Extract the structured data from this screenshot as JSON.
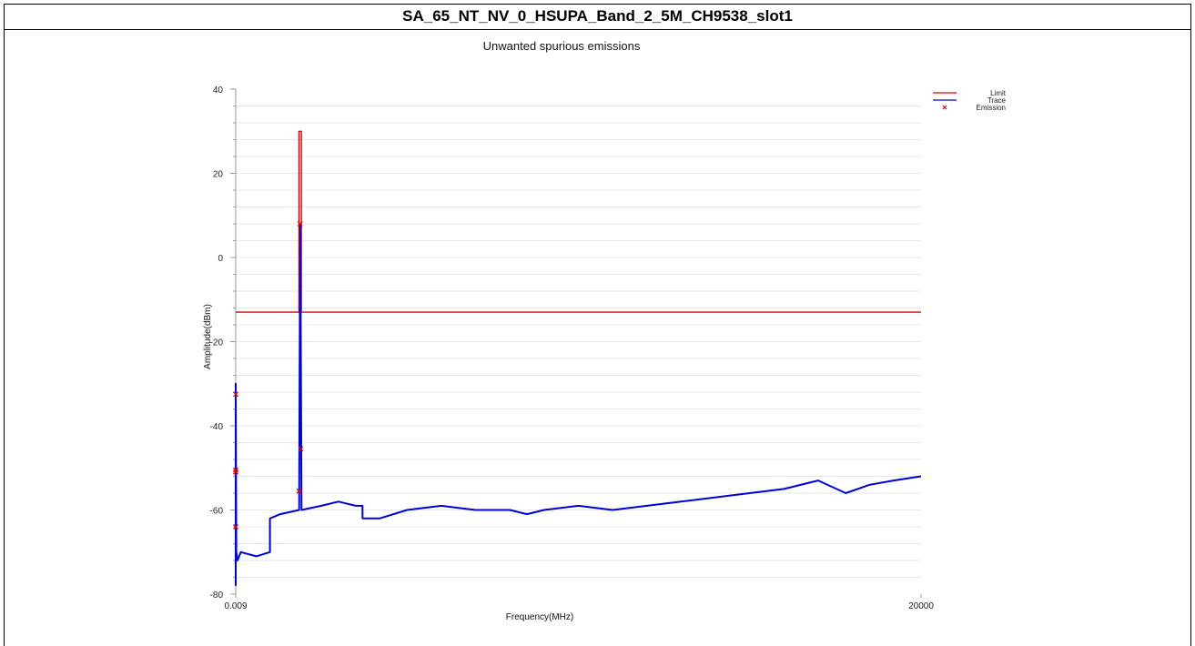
{
  "header": {
    "title": "SA_65_NT_NV_0_HSUPA_Band_2_5M_CH9538_slot1"
  },
  "chart_data": {
    "type": "line",
    "title": "Unwanted spurious emissions",
    "xlabel": "Frequency(MHz)",
    "ylabel": "Amplitude(dBm)",
    "xlim": [
      0.009,
      20000
    ],
    "ylim": [
      -80,
      40
    ],
    "x_tick_labels": [
      "0.009",
      "20000"
    ],
    "y_ticks": [
      40,
      20,
      0,
      -20,
      -40,
      -60,
      -80
    ],
    "x_axis_note": "piecewise frequency axis; values approximate",
    "grid": true,
    "legend_placement": "top-right",
    "colors": {
      "limit": "#e00000",
      "trace": "#0000dd",
      "emission": "#e00000"
    },
    "series": [
      {
        "name": "Limit",
        "kind": "line",
        "points": [
          [
            0.009,
            -13
          ],
          [
            1845,
            -13
          ],
          [
            1845,
            30
          ],
          [
            1915,
            30
          ],
          [
            1915,
            -13
          ],
          [
            20000,
            -13
          ]
        ]
      },
      {
        "name": "Trace",
        "kind": "line",
        "points": [
          [
            0.009,
            -78
          ],
          [
            0.009,
            -30
          ],
          [
            15,
            -70
          ],
          [
            50,
            -72
          ],
          [
            150,
            -70
          ],
          [
            600,
            -71
          ],
          [
            1000,
            -70
          ],
          [
            1000,
            -62
          ],
          [
            1300,
            -61
          ],
          [
            1850,
            -60
          ],
          [
            1880,
            8
          ],
          [
            1900,
            -20
          ],
          [
            1920,
            -60
          ],
          [
            2500,
            -59
          ],
          [
            3000,
            -58
          ],
          [
            3500,
            -59
          ],
          [
            3700,
            -59
          ],
          [
            3700,
            -62
          ],
          [
            4200,
            -62
          ],
          [
            5000,
            -60
          ],
          [
            6000,
            -59
          ],
          [
            7000,
            -60
          ],
          [
            8000,
            -60
          ],
          [
            8500,
            -61
          ],
          [
            9000,
            -60
          ],
          [
            10000,
            -59
          ],
          [
            11000,
            -60
          ],
          [
            12000,
            -59
          ],
          [
            13000,
            -58
          ],
          [
            14000,
            -57
          ],
          [
            15000,
            -56
          ],
          [
            16000,
            -55
          ],
          [
            17000,
            -53
          ],
          [
            17800,
            -56
          ],
          [
            18500,
            -54
          ],
          [
            19200,
            -53
          ],
          [
            20000,
            -52
          ]
        ]
      },
      {
        "name": "Emission",
        "kind": "scatter",
        "points": [
          [
            0.009,
            -32.5
          ],
          [
            0.009,
            -50.5
          ],
          [
            0.009,
            -51
          ],
          [
            0.009,
            -64
          ],
          [
            1845,
            -55.5
          ],
          [
            1880,
            8
          ],
          [
            1900,
            -45.5
          ]
        ]
      }
    ]
  }
}
